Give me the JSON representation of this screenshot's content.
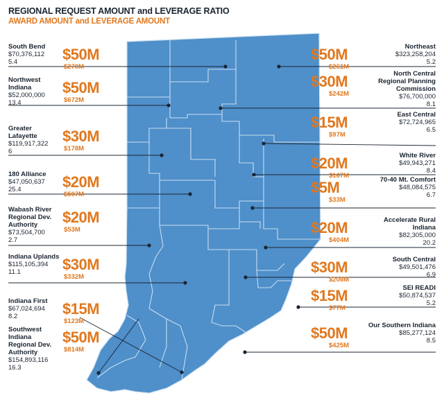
{
  "header": {
    "title": "REGIONAL REQUEST AMOUNT and LEVERAGE RATIO",
    "subtitle": "AWARD AMOUNT and LEVERAGE AMOUNT"
  },
  "colors": {
    "map_fill": "#4f8fca",
    "border": "#c9dff0",
    "leader": "#1a2430",
    "award": "#e0781e",
    "text": "#1a2430"
  },
  "regions": [
    {
      "name": "South Bend",
      "request": "$70,376,112",
      "ratio": "5.4",
      "award": "$50M",
      "leverage": "$270M"
    },
    {
      "name": "Northwest Indiana",
      "request": "$52,000,000",
      "ratio": "13.4",
      "award": "$50M",
      "leverage": "$672M"
    },
    {
      "name": "Greater Lafayette",
      "request": "$119,917,322",
      "ratio": "6",
      "award": "$30M",
      "leverage": "$178M"
    },
    {
      "name": "180 Alliance",
      "request": "$47,050,637",
      "ratio": "25.4",
      "award": "$20M",
      "leverage": "$507M"
    },
    {
      "name": "Wabash River Regional Dev. Authority",
      "request": "$73,504,700",
      "ratio": "2.7",
      "award": "$20M",
      "leverage": "$53M"
    },
    {
      "name": "Indiana Uplands",
      "request": "$115,105,394",
      "ratio": "11.1",
      "award": "$30M",
      "leverage": "$332M"
    },
    {
      "name": "Indiana First",
      "request": "$67,024,694",
      "ratio": "8.2",
      "award": "$15M",
      "leverage": "$123M"
    },
    {
      "name": "Southwest Indiana Regional Dev. Authority",
      "request": "$154,893,116",
      "ratio": "16.3",
      "award": "$50M",
      "leverage": "$814M"
    },
    {
      "name": "Northeast",
      "request": "$323,258,204",
      "ratio": "5.2",
      "award": "$50M",
      "leverage": "$261M"
    },
    {
      "name": "North Central Regional Planning Commission",
      "request": "$76,700,000",
      "ratio": "8.1",
      "award": "$30M",
      "leverage": "$242M"
    },
    {
      "name": "East Central",
      "request": "$72,724,965",
      "ratio": "6.5",
      "award": "$15M",
      "leverage": "$97M"
    },
    {
      "name": "White River",
      "request": "$49,943,271",
      "ratio": "8.4",
      "award": "$20M",
      "leverage": "$167M"
    },
    {
      "name": "70-40 Mt. Comfort",
      "request": "$48,084,575",
      "ratio": "6.7",
      "award": "$5M",
      "leverage": "$33M"
    },
    {
      "name": "Accelerate Rural Indiana",
      "request": "$82,305,000",
      "ratio": "20.2",
      "award": "$20M",
      "leverage": "$404M"
    },
    {
      "name": "South Central",
      "request": "$49,501,476",
      "ratio": "6.9",
      "award": "$30M",
      "leverage": "$208M"
    },
    {
      "name": "SEI READI",
      "request": "$50,874,537",
      "ratio": "5.2",
      "award": "$15M",
      "leverage": "$77M"
    },
    {
      "name": "Our Southern Indiana",
      "request": "$85,277,124",
      "ratio": "8.5",
      "award": "$50M",
      "leverage": "$425M"
    }
  ]
}
